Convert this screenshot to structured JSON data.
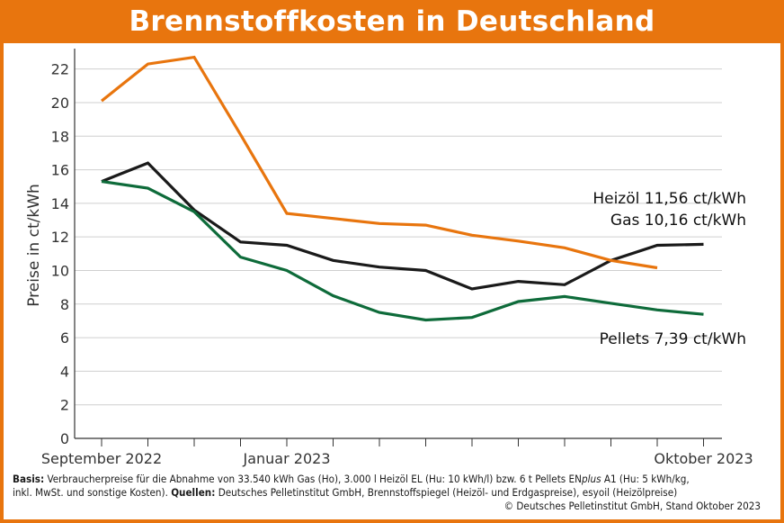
{
  "header": {
    "title": "Brennstoffkosten in Deutschland"
  },
  "chart_data": {
    "type": "line",
    "ylabel": "Preise in ct/kWh",
    "ylim": [
      0,
      23
    ],
    "yticks": [
      0,
      2,
      4,
      6,
      8,
      10,
      12,
      14,
      16,
      18,
      20,
      22
    ],
    "x_labels": [
      {
        "index": 0,
        "text": "September 2022"
      },
      {
        "index": 4,
        "text": "Januar 2023"
      },
      {
        "index": 13,
        "text": "Oktober 2023"
      }
    ],
    "x_count": 14,
    "grid": true,
    "series": [
      {
        "name": "Heizöl",
        "label": "Heizöl 11,56 ct/kWh",
        "color": "#1a1a1a",
        "values": [
          15.3,
          16.4,
          13.6,
          11.7,
          11.5,
          10.6,
          10.2,
          10.0,
          8.9,
          9.35,
          9.15,
          10.6,
          11.5,
          11.56
        ]
      },
      {
        "name": "Gas",
        "label": "Gas 10,16 ct/kWh",
        "color": "#e8750e",
        "values": [
          20.1,
          22.3,
          22.7,
          18.1,
          13.4,
          13.1,
          12.8,
          12.7,
          12.1,
          11.75,
          11.35,
          10.6,
          10.16,
          null
        ]
      },
      {
        "name": "Pellets",
        "label": "Pellets 7,39 ct/kWh",
        "color": "#0e6b3a",
        "values": [
          15.3,
          14.9,
          13.5,
          10.8,
          10.0,
          8.5,
          7.5,
          7.05,
          7.2,
          8.15,
          8.45,
          8.05,
          7.65,
          7.39
        ]
      }
    ]
  },
  "footer": {
    "basis_label": "Basis:",
    "basis_text": " Verbraucherpreise für die Abnahme von 33.540 kWh Gas (Ho), 3.000 l Heizöl EL (Hu: 10 kWh/l) bzw. 6 t Pellets EN",
    "enplus_italic": "plus",
    "basis_text_2": " A1 (Hu: 5 kWh/kg,",
    "line2_text": "inkl. MwSt. und sonstige Kosten). ",
    "sources_label": "Quellen:",
    "sources_text": " Deutsches Pelletinstitut GmbH, Brennstoffspiegel (Heizöl- und Erdgaspreise), esyoil (Heizölpreise)",
    "copyright": "© Deutsches Pelletinstitut GmbH, Stand Oktober 2023"
  }
}
